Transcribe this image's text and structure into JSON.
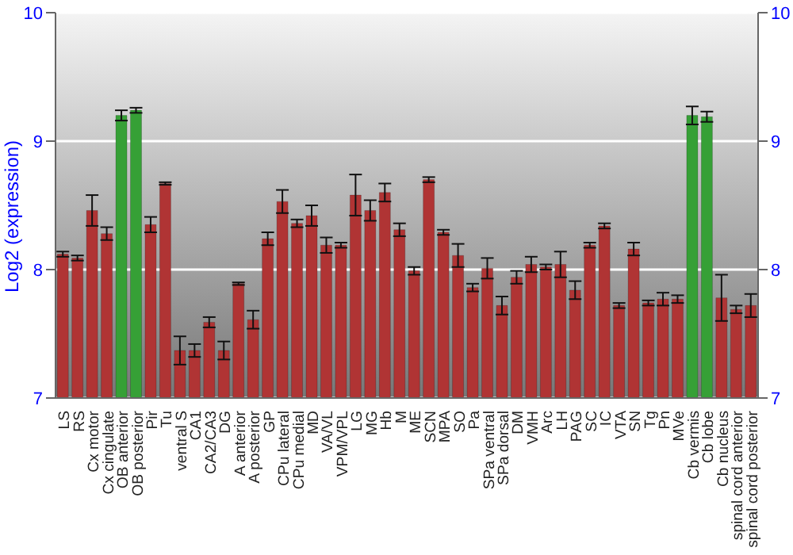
{
  "chart_data": {
    "type": "bar",
    "ylabel": "Log2 (expression)",
    "categories": [
      "LS",
      "RS",
      "Cx motor",
      "Cx cingulate",
      "OB anterior",
      "OB posterior",
      "Pir",
      "Tu",
      "ventral S",
      "CA1",
      "CA2/CA3",
      "DG",
      "A anterior",
      "A posterior",
      "GP",
      "CPu lateral",
      "CPu medial",
      "MD",
      "VA/VL",
      "VPM/VPL",
      "LG",
      "MG",
      "Hb",
      "M",
      "ME",
      "SCN",
      "MPA",
      "SO",
      "Pa",
      "SPa ventral",
      "SPa dorsal",
      "DM",
      "VMH",
      "Arc",
      "LH",
      "PAG",
      "SC",
      "IC",
      "VTA",
      "SN",
      "Tg",
      "Pn",
      "MVe",
      "Cb vermis",
      "Cb lobe",
      "Cb nucleus",
      "spinal cord anterior",
      "spinal cord posterior"
    ],
    "values": [
      8.12,
      8.09,
      8.46,
      8.28,
      9.2,
      9.24,
      8.35,
      8.67,
      7.37,
      7.37,
      7.59,
      7.37,
      7.89,
      7.61,
      8.24,
      8.53,
      8.36,
      8.42,
      8.19,
      8.19,
      8.58,
      8.46,
      8.6,
      8.31,
      7.99,
      8.7,
      8.29,
      8.11,
      7.86,
      8.01,
      7.72,
      7.94,
      8.04,
      8.02,
      8.04,
      7.84,
      8.19,
      8.34,
      7.72,
      8.16,
      7.74,
      7.77,
      7.77,
      9.2,
      9.19,
      7.78,
      7.69,
      7.72
    ],
    "errors": [
      0.02,
      0.02,
      0.12,
      0.05,
      0.04,
      0.02,
      0.06,
      0.01,
      0.11,
      0.05,
      0.04,
      0.07,
      0.01,
      0.07,
      0.05,
      0.09,
      0.03,
      0.08,
      0.06,
      0.02,
      0.16,
      0.08,
      0.07,
      0.05,
      0.03,
      0.02,
      0.02,
      0.09,
      0.03,
      0.08,
      0.07,
      0.05,
      0.06,
      0.02,
      0.1,
      0.07,
      0.02,
      0.02,
      0.02,
      0.05,
      0.02,
      0.05,
      0.03,
      0.07,
      0.04,
      0.18,
      0.03,
      0.09
    ],
    "colors": [
      "#b03434",
      "#b03434",
      "#b03434",
      "#b03434",
      "#36a036",
      "#36a036",
      "#b03434",
      "#b03434",
      "#b03434",
      "#b03434",
      "#b03434",
      "#b03434",
      "#b03434",
      "#b03434",
      "#b03434",
      "#b03434",
      "#b03434",
      "#b03434",
      "#b03434",
      "#b03434",
      "#b03434",
      "#b03434",
      "#b03434",
      "#b03434",
      "#b03434",
      "#b03434",
      "#b03434",
      "#b03434",
      "#b03434",
      "#b03434",
      "#b03434",
      "#b03434",
      "#b03434",
      "#b03434",
      "#b03434",
      "#b03434",
      "#b03434",
      "#b03434",
      "#b03434",
      "#b03434",
      "#b03434",
      "#b03434",
      "#b03434",
      "#36a036",
      "#36a036",
      "#b03434",
      "#b03434",
      "#b03434"
    ],
    "ylim": [
      7,
      10
    ],
    "yticks": [
      7,
      8,
      9,
      10
    ],
    "y2lim": [
      7,
      10
    ],
    "y2ticks": [
      7,
      8,
      9,
      10
    ],
    "grid": "y"
  }
}
